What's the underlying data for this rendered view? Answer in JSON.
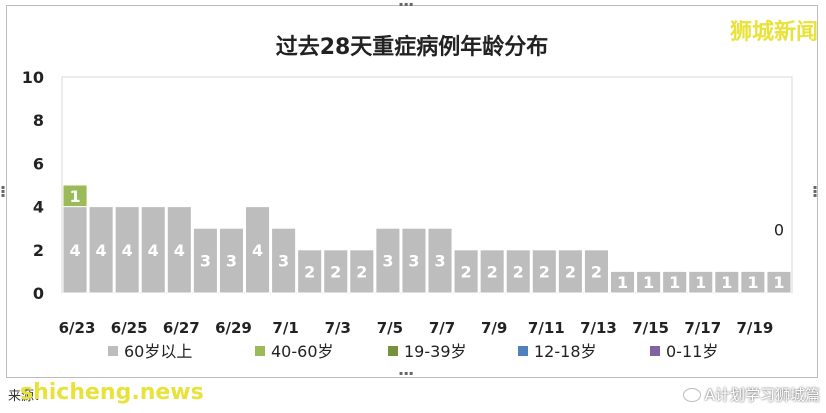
{
  "watermarks": {
    "top": "狮城新闻",
    "bottom": "shicheng.news"
  },
  "source": "来源：",
  "wechat_tag": "A计划学习狮城篇",
  "chart_data": {
    "type": "bar",
    "stacked": true,
    "title": "过去28天重症病例年龄分布",
    "xlabel": "",
    "ylabel": "",
    "ylim": [
      0,
      10
    ],
    "yticks": [
      0,
      2,
      4,
      6,
      8,
      10
    ],
    "grid": false,
    "legend_position": "bottom",
    "categories": [
      "6/23",
      "6/24",
      "6/25",
      "6/26",
      "6/27",
      "6/28",
      "6/29",
      "6/30",
      "7/1",
      "7/2",
      "7/3",
      "7/4",
      "7/5",
      "7/6",
      "7/7",
      "7/8",
      "7/9",
      "7/10",
      "7/11",
      "7/12",
      "7/13",
      "7/14",
      "7/15",
      "7/16",
      "7/17",
      "7/18",
      "7/19",
      "7/20"
    ],
    "tick_labels": [
      "6/23",
      "",
      "6/25",
      "",
      "6/27",
      "",
      "6/29",
      "",
      "7/1",
      "",
      "7/3",
      "",
      "7/5",
      "",
      "7/7",
      "",
      "7/9",
      "",
      "7/11",
      "",
      "7/13",
      "",
      "7/15",
      "",
      "7/17",
      "",
      "7/19",
      ""
    ],
    "series": [
      {
        "name": "60岁以上",
        "color": "#bdbdbd",
        "values": [
          4,
          4,
          4,
          4,
          4,
          3,
          3,
          4,
          3,
          2,
          2,
          2,
          3,
          3,
          3,
          2,
          2,
          2,
          2,
          2,
          2,
          1,
          1,
          1,
          1,
          1,
          1,
          1
        ]
      },
      {
        "name": "40-60岁",
        "color": "#9bbb59",
        "values": [
          1,
          0,
          0,
          0,
          0,
          0,
          0,
          0,
          0,
          0,
          0,
          0,
          0,
          0,
          0,
          0,
          0,
          0,
          0,
          0,
          0,
          0,
          0,
          0,
          0,
          0,
          0,
          0
        ]
      },
      {
        "name": "19-39岁",
        "color": "#76923c",
        "values": [
          0,
          0,
          0,
          0,
          0,
          0,
          0,
          0,
          0,
          0,
          0,
          0,
          0,
          0,
          0,
          0,
          0,
          0,
          0,
          0,
          0,
          0,
          0,
          0,
          0,
          0,
          0,
          0
        ]
      },
      {
        "name": "12-18岁",
        "color": "#4f81bd",
        "values": [
          0,
          0,
          0,
          0,
          0,
          0,
          0,
          0,
          0,
          0,
          0,
          0,
          0,
          0,
          0,
          0,
          0,
          0,
          0,
          0,
          0,
          0,
          0,
          0,
          0,
          0,
          0,
          0
        ]
      },
      {
        "name": "0-11岁",
        "color": "#8064a2",
        "values": [
          0,
          0,
          0,
          0,
          0,
          0,
          0,
          0,
          0,
          0,
          0,
          0,
          0,
          0,
          0,
          0,
          0,
          0,
          0,
          0,
          0,
          0,
          0,
          0,
          0,
          0,
          0,
          0
        ]
      }
    ],
    "annotations": [
      {
        "category": "7/20",
        "value": 1,
        "text": "0"
      }
    ]
  }
}
